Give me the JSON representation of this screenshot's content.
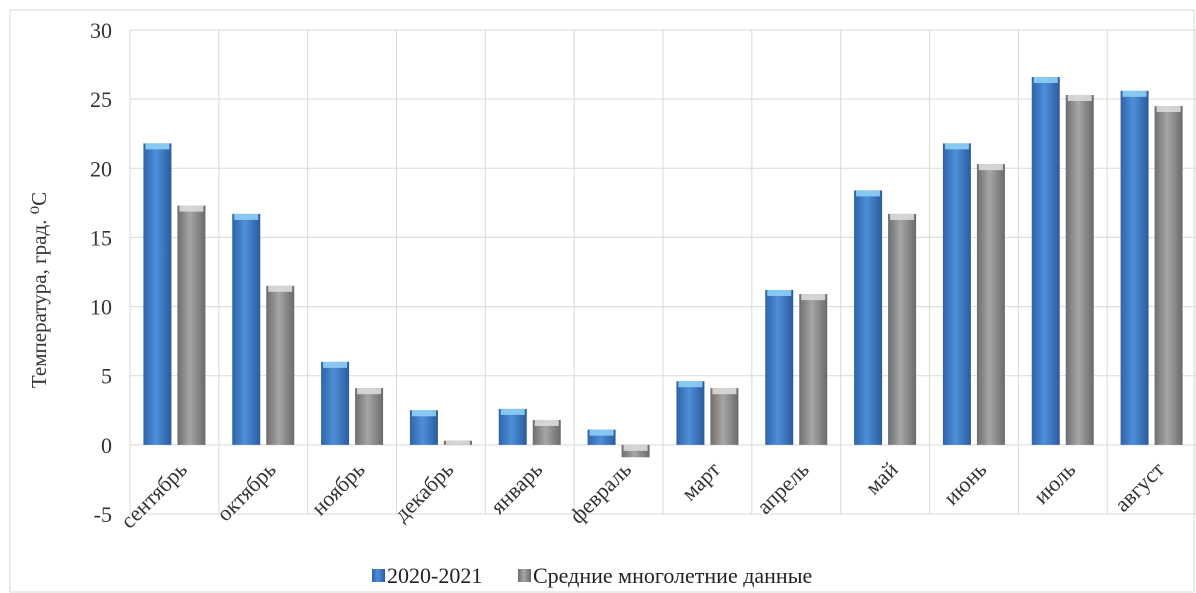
{
  "chart_data": {
    "type": "bar",
    "categories": [
      "сентябрь",
      "октябрь",
      "ноябрь",
      "декабрь",
      "январь",
      "февраль",
      "март",
      "апрель",
      "май",
      "июнь",
      "июль",
      "август"
    ],
    "series": [
      {
        "name": "2020-2021",
        "values": [
          21.8,
          16.7,
          6.0,
          2.5,
          2.6,
          1.1,
          4.6,
          11.2,
          18.4,
          21.8,
          26.6,
          25.6
        ],
        "color": "#3f7fcb"
      },
      {
        "name": "Средние многолетние данные",
        "values": [
          17.3,
          11.5,
          4.1,
          0.3,
          1.8,
          -0.9,
          4.1,
          10.9,
          16.7,
          20.3,
          25.3,
          24.5
        ],
        "color": "#8f8f8f"
      }
    ],
    "title": "",
    "xlabel": "",
    "ylabel": "Температура, град. ⁰С",
    "ylim": [
      -5,
      30
    ],
    "yticks": [
      -5,
      0,
      5,
      10,
      15,
      20,
      25,
      30
    ],
    "grid": true,
    "legend": "bottom"
  }
}
